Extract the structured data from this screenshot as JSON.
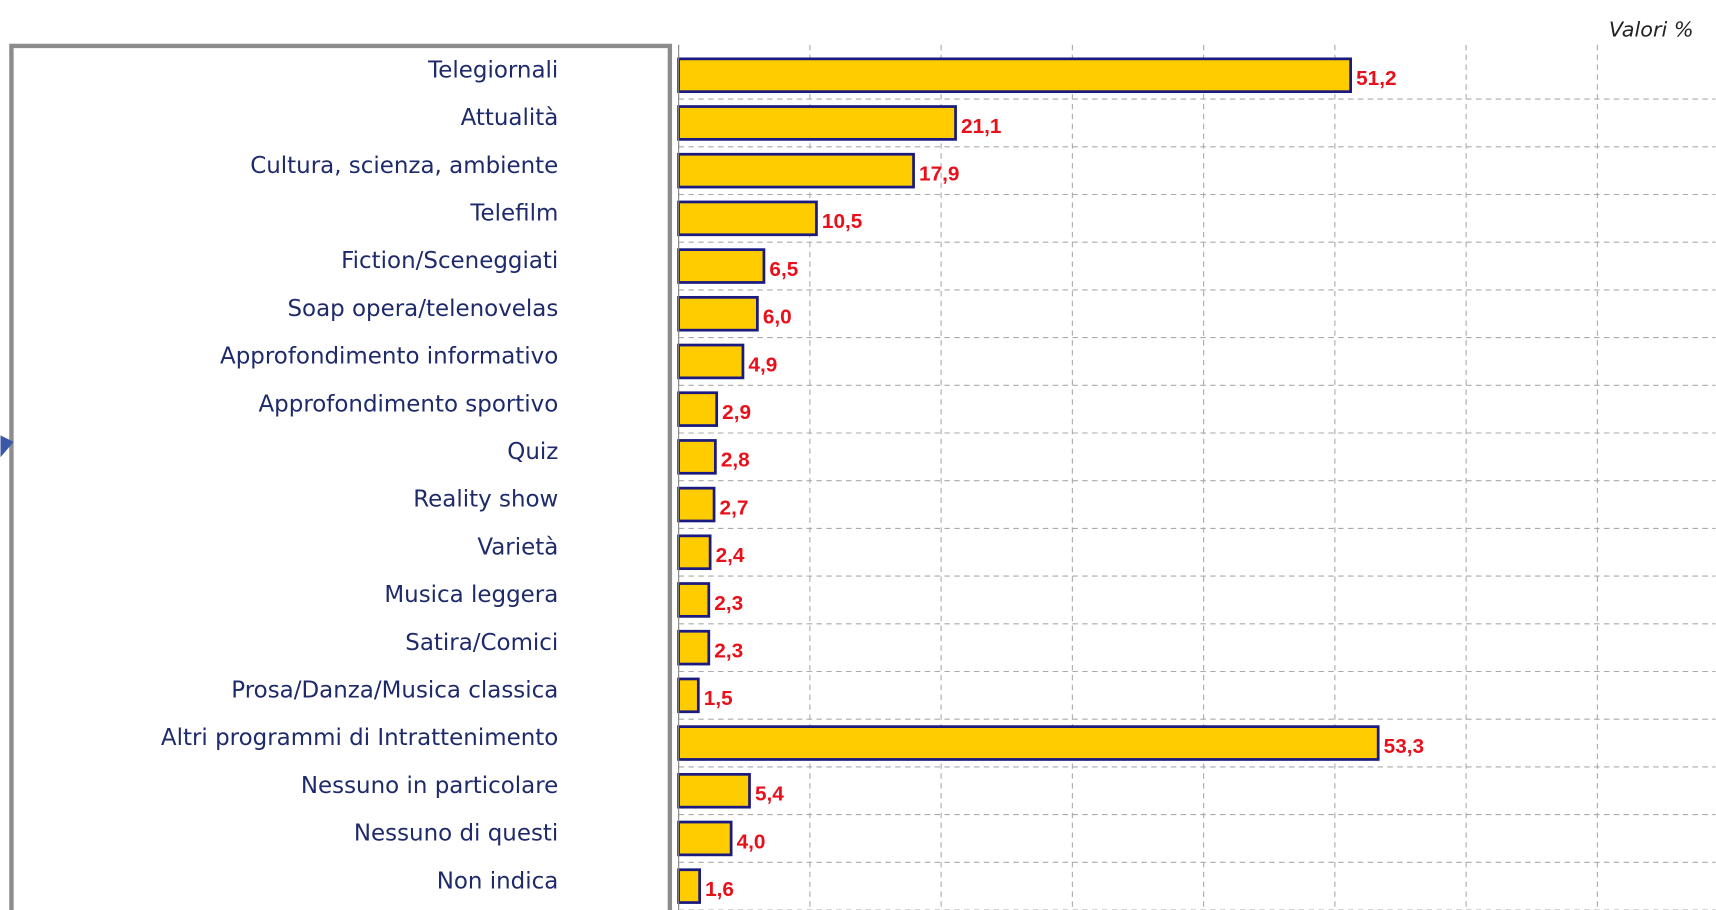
{
  "chart_data": {
    "type": "bar",
    "orientation": "horizontal",
    "note": "Valori %",
    "categories": [
      "Telegiornali",
      "Attualità",
      "Cultura, scienza, ambiente",
      "Telefilm",
      "Fiction/Sceneggiati",
      "Soap opera/telenovelas",
      "Approfondimento informativo",
      "Approfondimento sportivo",
      "Quiz",
      "Reality show",
      "Varietà",
      "Musica leggera",
      "Satira/Comici",
      "Prosa/Danza/Musica classica",
      "Altri programmi di Intrattenimento",
      "Nessuno in particolare",
      "Nessuno di questi",
      "Non indica"
    ],
    "values": [
      51.2,
      21.1,
      17.9,
      10.5,
      6.5,
      6.0,
      4.9,
      2.9,
      2.8,
      2.7,
      2.4,
      2.3,
      2.3,
      1.5,
      53.3,
      5.4,
      4.0,
      1.6
    ],
    "value_labels": [
      "51,2",
      "21,1",
      "17,9",
      "10,5",
      "6,5",
      "6,0",
      "4,9",
      "2,9",
      "2,8",
      "2,7",
      "2,4",
      "2,3",
      "2,3",
      "1,5",
      "53,3",
      "5,4",
      "4,0",
      "1,6"
    ],
    "color": "#ffcc00",
    "xlim": [
      0,
      79
    ],
    "xticks": [
      0,
      10,
      20,
      30,
      40,
      50,
      60,
      70
    ],
    "grid": true
  }
}
